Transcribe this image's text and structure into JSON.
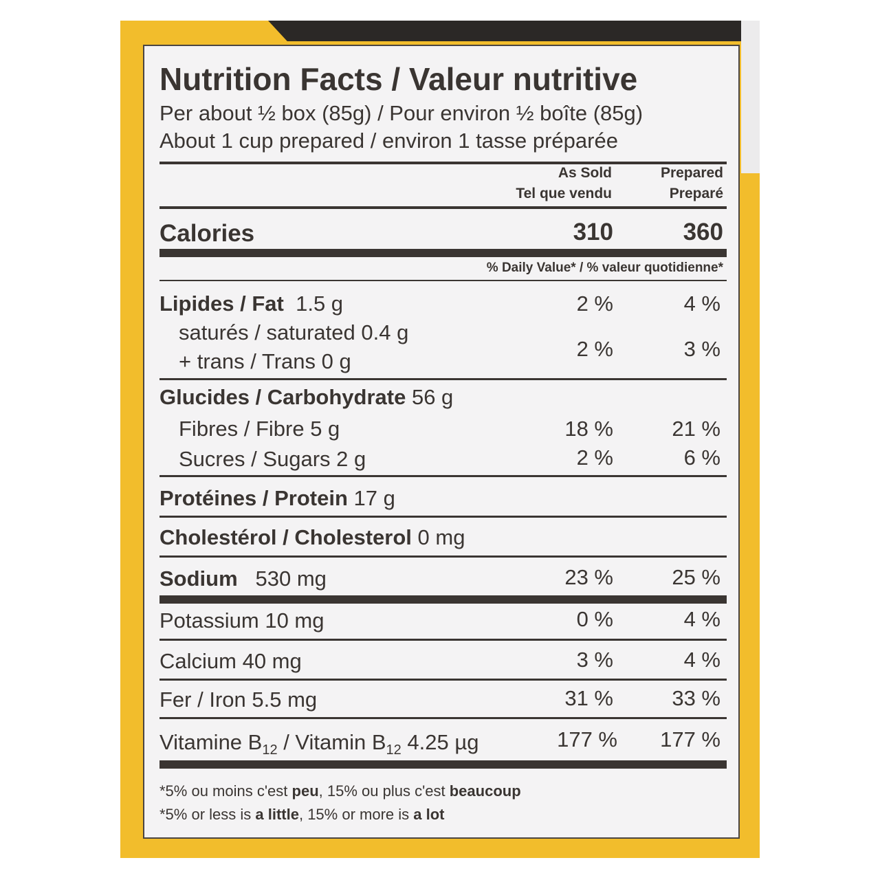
{
  "title": "Nutrition Facts / Valeur nutritive",
  "serving": [
    "Per about ½ box (85g) / Pour environ ½ boîte (85g)",
    "About 1 cup prepared / environ 1 tasse préparée"
  ],
  "columns": {
    "as_sold": [
      "As Sold",
      "Tel que vendu"
    ],
    "prepared": [
      "Prepared",
      "Preparé"
    ]
  },
  "calories": {
    "label": "Calories",
    "as_sold": "310",
    "prepared": "360"
  },
  "dv_header": "% Daily Value* / % valeur quotidienne*",
  "rows": {
    "fat": {
      "label": "Lipides / Fat",
      "amount": "1.5 g",
      "as_sold": "2 %",
      "prepared": "4 %"
    },
    "saturated": {
      "label": "saturés / saturated 0.4 g"
    },
    "trans": {
      "label": "+ trans / Trans 0 g",
      "as_sold": "2 %",
      "prepared": "3 %"
    },
    "carb": {
      "label": "Glucides / Carbohydrate",
      "amount": "56 g"
    },
    "fibre": {
      "label": "Fibres / Fibre 5 g",
      "as_sold": "18 %",
      "prepared": "21 %"
    },
    "sugars": {
      "label": "Sucres / Sugars 2 g",
      "as_sold": "2 %",
      "prepared": "6 %"
    },
    "protein": {
      "label": "Protéines / Protein",
      "amount": "17 g"
    },
    "cholesterol": {
      "label": "Cholestérol / Cholesterol",
      "amount": "0 mg"
    },
    "sodium": {
      "label": "Sodium",
      "amount": "530 mg",
      "as_sold": "23 %",
      "prepared": "25 %"
    },
    "potassium": {
      "label": "Potassium 10 mg",
      "as_sold": "0 %",
      "prepared": "4 %"
    },
    "calcium": {
      "label": "Calcium 40 mg",
      "as_sold": "3 %",
      "prepared": "4 %"
    },
    "iron": {
      "label": "Fer / Iron 5.5 mg",
      "as_sold": "31 %",
      "prepared": "33 %"
    },
    "b12": {
      "label_a": "Vitamine B",
      "sub": "12",
      "label_b": " / Vitamin B",
      "label_c": " 4.25 µg",
      "as_sold": "177 %",
      "prepared": "177 %"
    }
  },
  "footnotes": {
    "fr": {
      "a": "*5% ou moins c'est ",
      "b": "peu",
      "c": ", 15% ou plus c'est ",
      "d": "beaucoup"
    },
    "en": {
      "a": "*5% or less is ",
      "b": "a little",
      "c": ", 15% or more is ",
      "d": "a lot"
    }
  },
  "colors": {
    "package": "#f2bd2c",
    "label_bg": "#f4f3f4",
    "ink": "#3a3532"
  }
}
